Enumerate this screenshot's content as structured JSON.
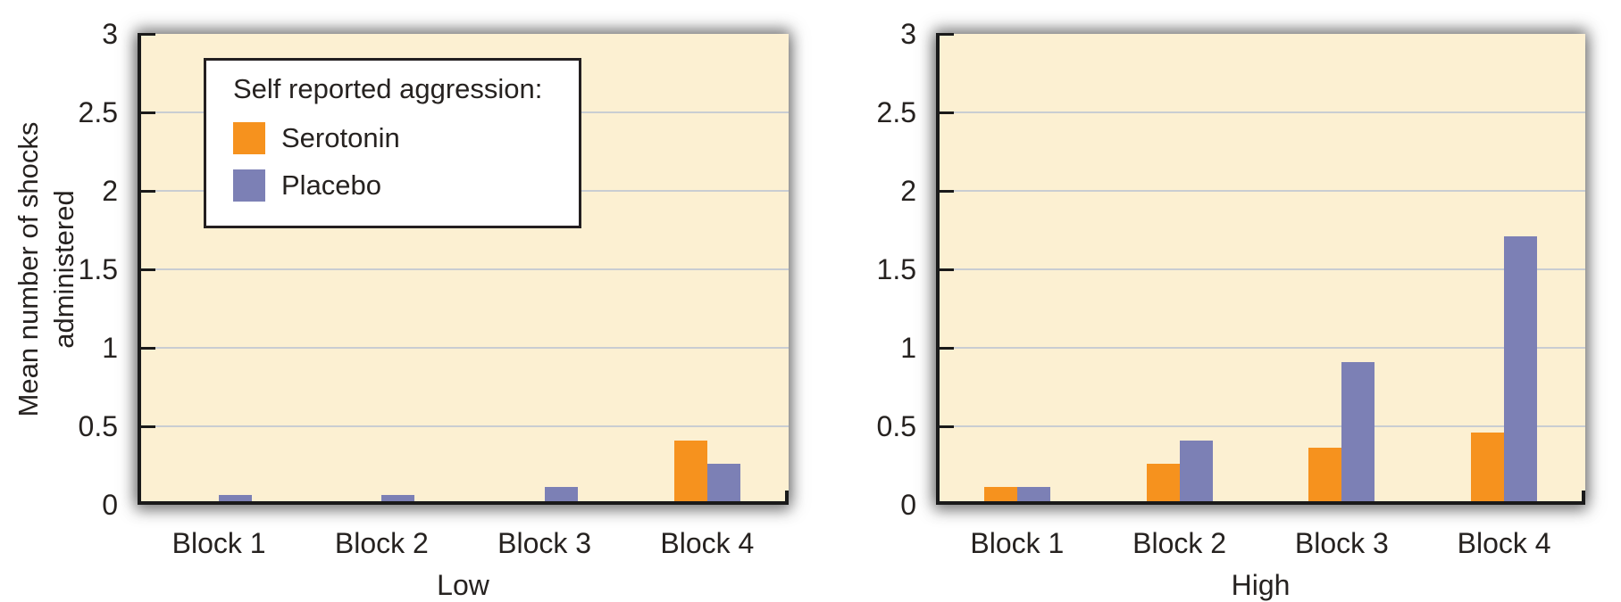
{
  "figure": {
    "kind": "two-panel grouped bar chart",
    "background": "#ffffff"
  },
  "colors": {
    "plot_background": "#FCF0D2",
    "serotonin": "#F6921E",
    "placebo": "#7C80B5",
    "gridline": "#C9CDD2",
    "axis": "#1A1A1A",
    "text": "#262220",
    "legend_border": "#231F20",
    "legend_background": "#FFFFFF"
  },
  "y_axis": {
    "label": "Mean number of shocks administered",
    "label_lines": [
      "Mean number of shocks",
      "administered"
    ],
    "tick_labels": [
      "3",
      "2.5",
      "2",
      "1.5",
      "1",
      "0.5",
      "0"
    ],
    "min": 0,
    "max": 3,
    "step": 0.5
  },
  "legend": {
    "title": "Self reported aggression:",
    "items": [
      {
        "label": "Serotonin",
        "color_key": "serotonin"
      },
      {
        "label": "Placebo",
        "color_key": "placebo"
      }
    ]
  },
  "chart_data": [
    {
      "type": "bar",
      "title": "Low",
      "categories": [
        "Block 1",
        "Block 2",
        "Block 3",
        "Block 4"
      ],
      "series": [
        {
          "name": "Serotonin",
          "color_key": "serotonin",
          "values": [
            0.01,
            0.01,
            0.01,
            0.4
          ]
        },
        {
          "name": "Placebo",
          "color_key": "placebo",
          "values": [
            0.05,
            0.05,
            0.1,
            0.25
          ]
        }
      ],
      "ylim": [
        0,
        3
      ],
      "ylabel": "Mean number of shocks administered",
      "grid": true,
      "gridline_values": [
        0.5,
        1,
        1.5,
        2,
        2.5
      ],
      "legend_position": "upper-left"
    },
    {
      "type": "bar",
      "title": "High",
      "categories": [
        "Block 1",
        "Block 2",
        "Block 3",
        "Block 4"
      ],
      "series": [
        {
          "name": "Serotonin",
          "color_key": "serotonin",
          "values": [
            0.1,
            0.25,
            0.35,
            0.45
          ]
        },
        {
          "name": "Placebo",
          "color_key": "placebo",
          "values": [
            0.1,
            0.4,
            0.9,
            1.7
          ]
        }
      ],
      "ylim": [
        0,
        3
      ],
      "grid": true,
      "gridline_values": [
        0.5,
        1,
        1.5,
        2,
        2.5
      ],
      "legend_position": "none"
    }
  ]
}
